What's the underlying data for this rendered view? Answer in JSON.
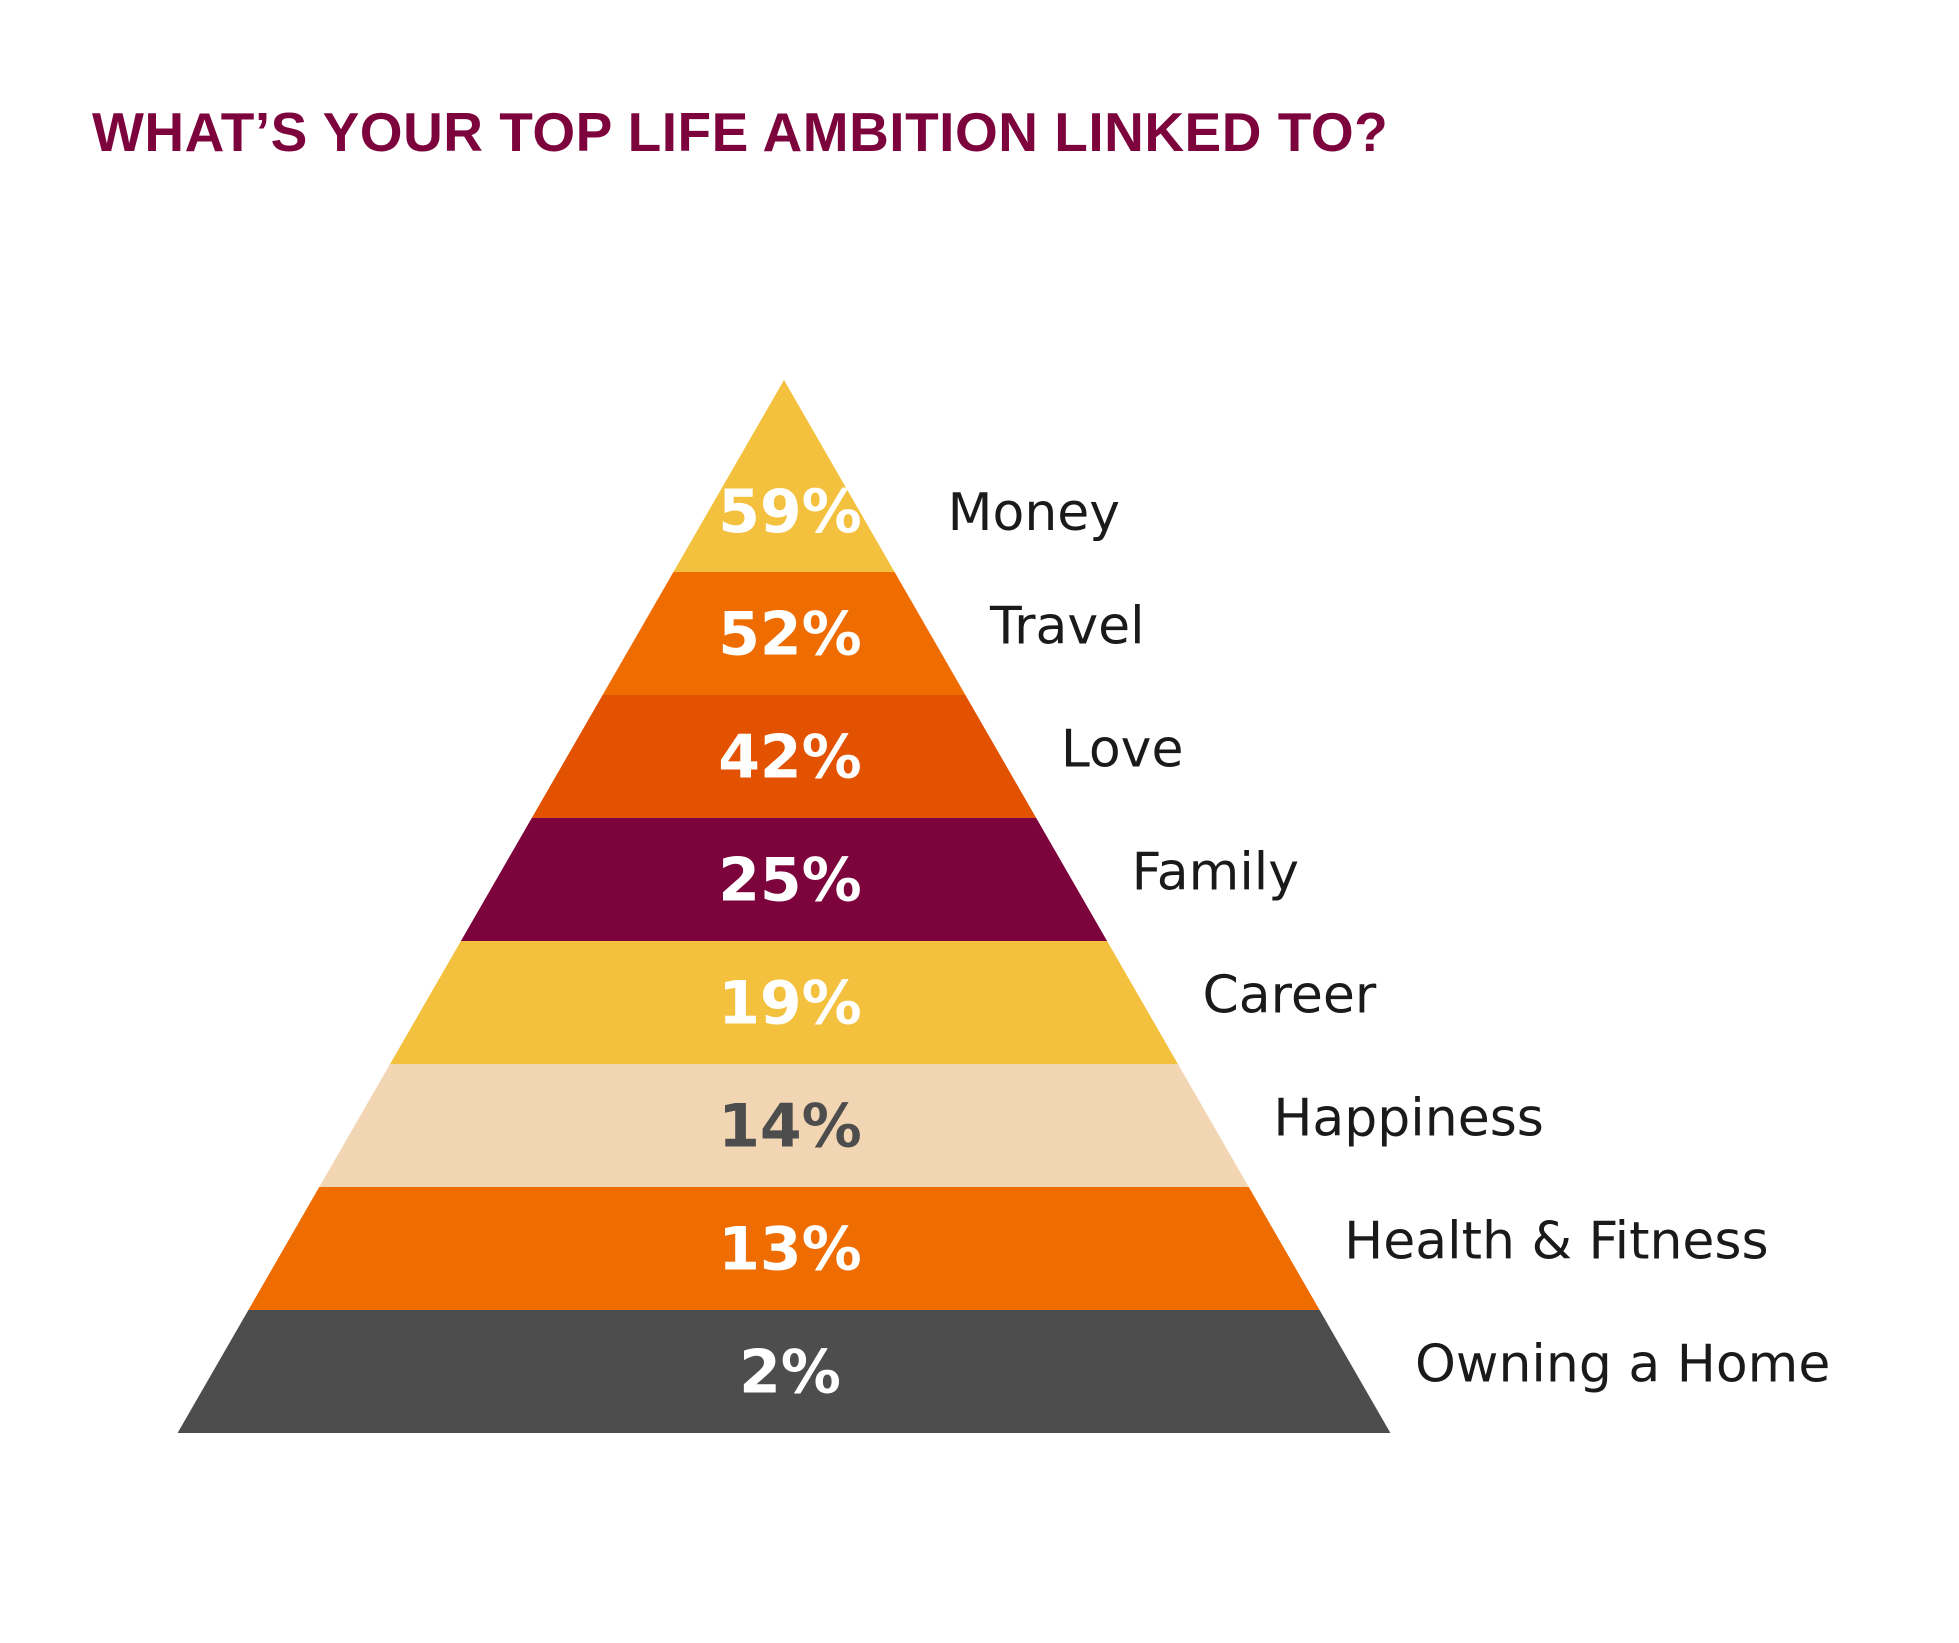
{
  "chart_data": {
    "type": "pyramid",
    "title": "WHAT’S YOUR TOP LIFE AMBITION LINKED TO?",
    "categories": [
      "Money",
      "Travel",
      "Love",
      "Family",
      "Career",
      "Happiness",
      "Health & Fitness",
      "Owning a Home"
    ],
    "values": [
      59,
      52,
      42,
      25,
      19,
      14,
      13,
      2
    ],
    "value_labels": [
      "59%",
      "52%",
      "42%",
      "25%",
      "19%",
      "14%",
      "13%",
      "2%"
    ],
    "colors": [
      "#F3C13E",
      "#EF6C00",
      "#E35200",
      "#7D033D",
      "#F3C13E",
      "#F2D6B3",
      "#EF6C00",
      "#4D4D4D"
    ],
    "label_colors": [
      "#FFFFFF",
      "#FFFFFF",
      "#FFFFFF",
      "#FFFFFF",
      "#FFFFFF",
      "#4D4D4D",
      "#FFFFFF",
      "#FFFFFF"
    ],
    "title_color": "#7D033D"
  }
}
